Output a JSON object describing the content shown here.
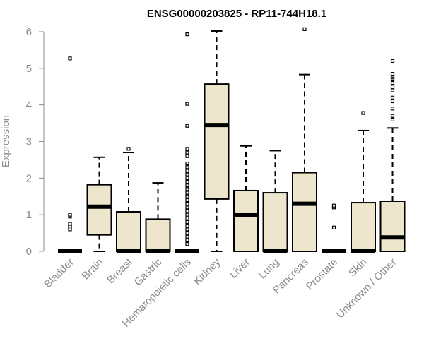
{
  "chart_data": {
    "type": "boxplot",
    "title": "ENSG00000203825 - RP11-744H18.1",
    "xlabel": "",
    "ylabel": "Expression",
    "ylim": [
      0,
      6
    ],
    "yticks": [
      0,
      1,
      2,
      3,
      4,
      5,
      6
    ],
    "grid": false,
    "colors": {
      "box_fill": "#ede5cc",
      "stroke": "#000000",
      "axis": "#8c8c8c"
    },
    "categories": [
      "Bladder",
      "Brain",
      "Breast",
      "Gastric",
      "Hematopoietic cells",
      "Kidney",
      "Liver",
      "Lung",
      "Pancreas",
      "Prostate",
      "Skin",
      "Unknown / Other"
    ],
    "boxes": [
      {
        "name": "Bladder",
        "min": 0,
        "q1": 0,
        "median": 0,
        "q3": 0,
        "max": 0,
        "outliers": [
          0.6,
          0.65,
          0.7,
          0.75,
          0.95,
          1.0,
          5.27
        ]
      },
      {
        "name": "Brain",
        "min": 0,
        "q1": 0.45,
        "median": 1.22,
        "q3": 1.82,
        "max": 2.57,
        "outliers": []
      },
      {
        "name": "Breast",
        "min": 0,
        "q1": 0,
        "median": 0,
        "q3": 1.08,
        "max": 2.7,
        "outliers": [
          2.8
        ]
      },
      {
        "name": "Gastric",
        "min": 0,
        "q1": 0,
        "median": 0,
        "q3": 0.88,
        "max": 1.87,
        "outliers": []
      },
      {
        "name": "Hematopoietic cells",
        "min": 0,
        "q1": 0,
        "median": 0,
        "q3": 0,
        "max": 0,
        "outliers": [
          0.2,
          0.3,
          0.4,
          0.5,
          0.6,
          0.7,
          0.8,
          0.9,
          1.0,
          1.1,
          1.2,
          1.3,
          1.4,
          1.5,
          1.6,
          1.7,
          1.8,
          1.9,
          2.0,
          2.1,
          2.2,
          2.3,
          2.4,
          2.6,
          2.7,
          2.8,
          3.43,
          4.03,
          5.93
        ]
      },
      {
        "name": "Kidney",
        "min": 0,
        "q1": 1.43,
        "median": 3.45,
        "q3": 4.57,
        "max": 6.02,
        "outliers": []
      },
      {
        "name": "Liver",
        "min": 0,
        "q1": 0,
        "median": 1.0,
        "q3": 1.66,
        "max": 2.88,
        "outliers": []
      },
      {
        "name": "Lung",
        "min": 0,
        "q1": 0,
        "median": 0,
        "q3": 1.6,
        "max": 2.75,
        "outliers": []
      },
      {
        "name": "Pancreas",
        "min": 0,
        "q1": 0,
        "median": 1.3,
        "q3": 2.15,
        "max": 4.83,
        "outliers": [
          6.07
        ]
      },
      {
        "name": "Prostate",
        "min": 0,
        "q1": 0,
        "median": 0,
        "q3": 0,
        "max": 0,
        "outliers": [
          0.65,
          1.2,
          1.25
        ]
      },
      {
        "name": "Skin",
        "min": 0,
        "q1": 0,
        "median": 0,
        "q3": 1.33,
        "max": 3.3,
        "outliers": [
          3.78
        ]
      },
      {
        "name": "Unknown / Other",
        "min": 0,
        "q1": 0,
        "median": 0.38,
        "q3": 1.37,
        "max": 3.37,
        "outliers": [
          3.6,
          3.7,
          3.9,
          4.1,
          4.2,
          4.4,
          4.5,
          4.6,
          4.7,
          4.75,
          4.8,
          4.85,
          5.2
        ]
      }
    ]
  }
}
